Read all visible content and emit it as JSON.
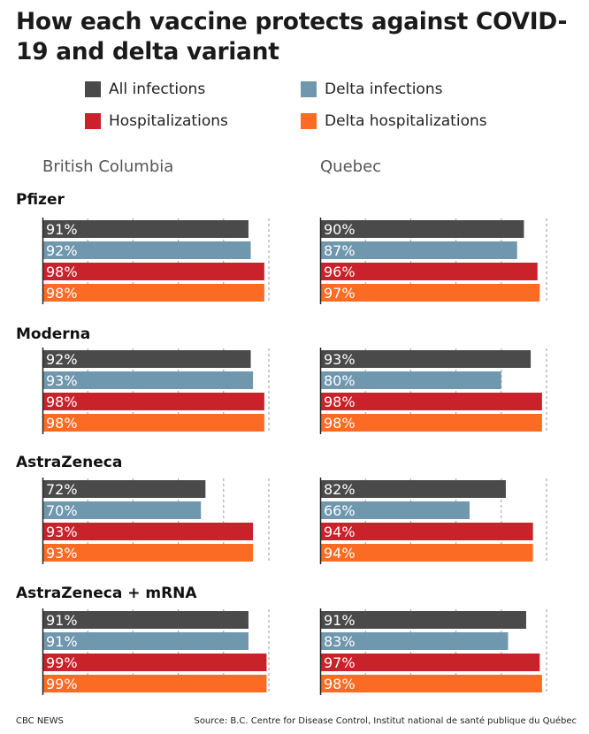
{
  "title": "How each vaccine protects against COVID-19 and delta variant",
  "legend": [
    {
      "label": "All infections",
      "color": "#4a4a4a"
    },
    {
      "label": "Delta infections",
      "color": "#6f97ae"
    },
    {
      "label": "Hospitalizations",
      "color": "#c9222a"
    },
    {
      "label": "Delta hospitalizations",
      "color": "#fb6b23"
    }
  ],
  "chart_data": {
    "type": "bar",
    "orientation": "horizontal",
    "value_suffix": "%",
    "xlim": [
      0,
      100
    ],
    "grid": true,
    "legend_position": "top",
    "regions": [
      "British Columbia",
      "Quebec"
    ],
    "series": [
      {
        "name": "All infections",
        "color": "#4a4a4a"
      },
      {
        "name": "Delta infections",
        "color": "#6f97ae"
      },
      {
        "name": "Hospitalizations",
        "color": "#c9222a"
      },
      {
        "name": "Delta hospitalizations",
        "color": "#fb6b23"
      }
    ],
    "groups": [
      {
        "vaccine": "Pfizer",
        "British Columbia": [
          91,
          92,
          98,
          98
        ],
        "Quebec": [
          90,
          87,
          96,
          97
        ]
      },
      {
        "vaccine": "Moderna",
        "British Columbia": [
          92,
          93,
          98,
          98
        ],
        "Quebec": [
          93,
          80,
          98,
          98
        ]
      },
      {
        "vaccine": "AstraZeneca",
        "British Columbia": [
          72,
          70,
          93,
          93
        ],
        "Quebec": [
          82,
          66,
          94,
          94
        ]
      },
      {
        "vaccine": "AstraZeneca + mRNA",
        "British Columbia": [
          91,
          91,
          99,
          99
        ],
        "Quebec": [
          91,
          83,
          97,
          98
        ]
      }
    ]
  },
  "footer": {
    "credit": "CBC NEWS",
    "source": "Source: B.C. Centre for Disease Control, Institut national de santé publique du Québec"
  }
}
